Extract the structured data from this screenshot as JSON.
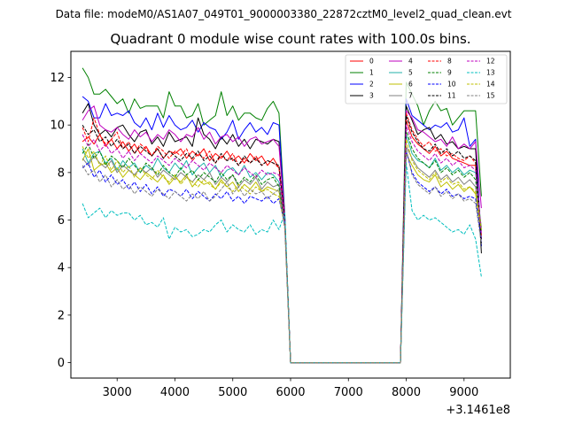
{
  "chart_data": {
    "type": "line",
    "suptitle": "Data file: modeM0/AS1A07_049T01_9000003380_22872cztM0_level2_quad_clean.evt",
    "title": "Quadrant 0 module wise count rates with 100.0s bins.",
    "xlabel": "",
    "ylabel": "",
    "x_offset_label": "+3.1461e8",
    "xlim": [
      2200,
      9800
    ],
    "ylim": [
      -0.65,
      13.1
    ],
    "xticks": [
      3000,
      4000,
      5000,
      6000,
      7000,
      8000,
      9000
    ],
    "yticks": [
      0,
      2,
      4,
      6,
      8,
      10,
      12
    ],
    "xtick_labels": [
      "3000",
      "4000",
      "5000",
      "6000",
      "7000",
      "8000",
      "9000"
    ],
    "ytick_labels": [
      "0",
      "2",
      "4",
      "6",
      "8",
      "10",
      "12"
    ],
    "legend_loc": "upper right",
    "legend_columns": 4,
    "x": [
      2400,
      2500,
      2600,
      2700,
      2800,
      2900,
      3000,
      3100,
      3200,
      3300,
      3400,
      3500,
      3600,
      3700,
      3800,
      3900,
      4000,
      4100,
      4200,
      4300,
      4400,
      4500,
      4600,
      4700,
      4800,
      4900,
      5000,
      5100,
      5200,
      5300,
      5400,
      5500,
      5600,
      5700,
      5800,
      5900,
      6000,
      6100,
      6200,
      6300,
      6400,
      6500,
      6600,
      6700,
      6800,
      6900,
      7000,
      7100,
      7200,
      7300,
      7400,
      7500,
      7600,
      7700,
      7800,
      7900,
      8000,
      8100,
      8200,
      8300,
      8400,
      8500,
      8600,
      8700,
      8800,
      8900,
      9000,
      9100,
      9200,
      9300,
      9400,
      9500,
      9600
    ],
    "series": [
      {
        "name": "0",
        "color": "#ff0000",
        "style": "solid",
        "plateau1": [
          9.3,
          9.5,
          9.2,
          9.6,
          9.1,
          9.4,
          9.0,
          9.3,
          8.9,
          9.2,
          8.8,
          9.1,
          8.7,
          9.0,
          8.6,
          8.9,
          8.8,
          9.0,
          8.6,
          8.9,
          8.7,
          9.0,
          8.5,
          8.8,
          8.6,
          8.9,
          8.5,
          8.7,
          8.4,
          8.8,
          8.5,
          8.7,
          8.3,
          8.6,
          8.2
        ],
        "drop": 6.1,
        "plateau2": [
          10.2,
          9.5,
          9.2,
          9.0,
          8.8,
          9.1,
          8.7,
          8.9,
          8.6,
          8.5,
          8.4,
          8.3,
          8.3
        ],
        "end": 5.2
      },
      {
        "name": "1",
        "color": "#008000",
        "style": "solid",
        "plateau1": [
          12.4,
          12.0,
          11.3,
          11.3,
          11.5,
          11.2,
          10.9,
          11.1,
          10.5,
          11.1,
          10.7,
          10.8,
          10.8,
          10.8,
          10.3,
          11.4,
          10.8,
          10.8,
          10.3,
          10.4,
          10.9,
          10.0,
          10.2,
          10.4,
          11.4,
          10.4,
          10.8,
          10.2,
          10.5,
          10.5,
          10.3,
          10.2,
          10.7,
          11.0,
          10.5
        ],
        "drop": 6.2,
        "plateau2": [
          11.8,
          11.3,
          10.8,
          10.0,
          10.6,
          11.0,
          10.6,
          10.7,
          10.0,
          10.3,
          10.6,
          10.6,
          10.6
        ],
        "end": 7.0
      },
      {
        "name": "2",
        "color": "#0000ff",
        "style": "solid",
        "plateau1": [
          11.2,
          11.0,
          10.3,
          10.3,
          10.9,
          10.4,
          10.5,
          10.4,
          10.6,
          10.1,
          9.9,
          10.3,
          9.8,
          10.5,
          9.9,
          10.4,
          10.0,
          9.8,
          9.9,
          10.2,
          9.7,
          10.1,
          9.9,
          9.8,
          9.4,
          9.7,
          10.2,
          9.4,
          9.8,
          10.1,
          9.7,
          9.9,
          9.6,
          10.1,
          10.0
        ],
        "drop": 6.1,
        "plateau2": [
          11.1,
          10.4,
          10.2,
          10.0,
          9.8,
          10.0,
          9.9,
          10.1,
          9.7,
          9.8,
          10.3,
          9.1,
          9.4
        ],
        "end": 4.9
      },
      {
        "name": "3",
        "color": "#000000",
        "style": "solid",
        "plateau1": [
          10.5,
          10.9,
          10.0,
          9.6,
          9.8,
          9.5,
          9.9,
          10.0,
          9.6,
          9.3,
          9.7,
          9.8,
          9.2,
          9.5,
          9.1,
          9.7,
          9.3,
          9.4,
          9.5,
          9.1,
          10.3,
          9.6,
          9.4,
          9.0,
          9.5,
          9.2,
          9.6,
          9.1,
          9.4,
          9.0,
          9.4,
          9.3,
          9.2,
          9.4,
          9.3
        ],
        "drop": 6.0,
        "plateau2": [
          10.8,
          10.2,
          9.6,
          9.8,
          9.9,
          9.4,
          9.6,
          9.2,
          9.3,
          9.0,
          9.1,
          9.0,
          9.0
        ],
        "end": 4.6
      },
      {
        "name": "4",
        "color": "#bf00bf",
        "style": "solid",
        "plateau1": [
          10.2,
          10.6,
          10.8,
          10.0,
          9.8,
          9.7,
          9.9,
          9.6,
          9.4,
          9.8,
          9.5,
          9.7,
          9.3,
          9.6,
          9.4,
          9.8,
          9.6,
          9.3,
          9.6,
          9.5,
          9.9,
          9.4,
          9.7,
          9.2,
          9.5,
          9.6,
          9.3,
          9.5,
          9.1,
          9.4,
          9.5,
          9.2,
          9.3,
          9.4,
          9.1
        ],
        "drop": 6.1,
        "plateau2": [
          10.6,
          10.3,
          9.8,
          9.7,
          9.5,
          9.3,
          9.4,
          9.1,
          9.5,
          9.0,
          9.2,
          9.0,
          9.3
        ],
        "end": 6.5
      },
      {
        "name": "5",
        "color": "#20b2aa",
        "style": "solid",
        "plateau1": [
          9.0,
          8.4,
          8.8,
          8.9,
          8.4,
          8.6,
          8.1,
          8.5,
          8.2,
          8.4,
          8.0,
          8.3,
          8.1,
          8.6,
          8.2,
          8.0,
          8.4,
          8.1,
          8.5,
          7.9,
          8.2,
          8.4,
          8.0,
          8.3,
          7.8,
          8.1,
          8.2,
          7.9,
          8.3,
          7.8,
          8.0,
          7.7,
          8.0,
          7.9,
          7.6
        ],
        "drop": 5.9,
        "plateau2": [
          9.6,
          8.8,
          8.5,
          8.4,
          8.2,
          8.6,
          8.1,
          8.3,
          8.0,
          8.2,
          7.9,
          8.1,
          8.0
        ],
        "end": 5.6
      },
      {
        "name": "6",
        "color": "#bfbf00",
        "style": "solid",
        "plateau1": [
          8.5,
          9.0,
          8.1,
          8.3,
          8.4,
          8.0,
          8.2,
          7.8,
          8.1,
          7.9,
          7.7,
          8.0,
          7.8,
          7.6,
          7.9,
          7.5,
          7.8,
          7.6,
          7.9,
          7.4,
          7.7,
          7.5,
          7.6,
          7.3,
          7.7,
          7.4,
          7.6,
          7.2,
          7.5,
          7.3,
          7.6,
          7.2,
          7.4,
          7.3,
          7.2
        ],
        "drop": 5.8,
        "plateau2": [
          8.8,
          8.3,
          7.9,
          7.7,
          7.6,
          7.9,
          7.4,
          7.6,
          7.3,
          7.5,
          7.2,
          7.4,
          7.1
        ],
        "end": 5.4
      },
      {
        "name": "7",
        "color": "#808080",
        "style": "solid",
        "plateau1": [
          8.6,
          8.3,
          8.7,
          8.4,
          8.2,
          8.5,
          8.0,
          8.3,
          8.1,
          7.9,
          8.2,
          8.0,
          8.2,
          7.8,
          8.1,
          7.9,
          7.7,
          8.0,
          7.8,
          7.6,
          7.9,
          7.7,
          8.0,
          7.5,
          7.8,
          7.6,
          7.9,
          7.4,
          7.7,
          7.5,
          7.8,
          7.3,
          7.6,
          7.4,
          7.5
        ],
        "drop": 5.9,
        "plateau2": [
          9.1,
          8.6,
          8.2,
          8.0,
          7.8,
          8.1,
          7.7,
          7.9,
          7.6,
          7.8,
          7.5,
          7.7,
          7.4
        ],
        "end": 5.7
      },
      {
        "name": "8",
        "color": "#ff0000",
        "style": "dashed",
        "plateau1": [
          9.9,
          9.3,
          10.3,
          9.6,
          9.2,
          9.4,
          9.7,
          9.0,
          9.3,
          8.8,
          9.2,
          9.0,
          8.7,
          9.1,
          8.9,
          8.6,
          8.9,
          8.7,
          9.0,
          8.5,
          8.8,
          8.6,
          8.9,
          8.4,
          8.7,
          8.5,
          8.8,
          8.3,
          8.6,
          8.4,
          8.7,
          8.3,
          8.5,
          8.4,
          8.2
        ],
        "drop": 6.0,
        "plateau2": [
          10.5,
          9.8,
          9.4,
          9.1,
          9.3,
          8.9,
          9.0,
          8.7,
          8.8,
          8.6,
          8.5,
          8.7,
          8.4
        ],
        "end": 5.3
      },
      {
        "name": "9",
        "color": "#008000",
        "style": "dashed",
        "plateau1": [
          8.8,
          9.2,
          8.6,
          8.9,
          8.3,
          8.7,
          8.5,
          8.2,
          8.6,
          8.3,
          8.0,
          8.4,
          8.2,
          7.9,
          8.3,
          8.0,
          7.8,
          8.2,
          7.9,
          8.1,
          7.7,
          8.0,
          7.8,
          7.6,
          8.0,
          7.7,
          7.9,
          7.5,
          7.8,
          7.6,
          7.9,
          7.5,
          7.7,
          7.8,
          7.4
        ],
        "drop": 5.8,
        "plateau2": [
          9.8,
          9.0,
          8.6,
          8.4,
          8.2,
          8.5,
          8.0,
          8.2,
          7.9,
          8.1,
          7.8,
          8.0,
          7.7
        ],
        "end": 5.5
      },
      {
        "name": "10",
        "color": "#0000ff",
        "style": "dashed",
        "plateau1": [
          8.2,
          8.4,
          7.8,
          8.1,
          7.6,
          7.9,
          7.5,
          7.7,
          7.3,
          7.6,
          7.2,
          7.5,
          7.1,
          7.4,
          7.0,
          7.3,
          7.2,
          7.0,
          7.3,
          6.9,
          7.2,
          7.0,
          6.8,
          7.1,
          6.9,
          7.2,
          6.8,
          7.0,
          6.7,
          7.0,
          6.9,
          6.8,
          7.0,
          6.7,
          6.9
        ],
        "drop": 5.8,
        "plateau2": [
          8.9,
          8.0,
          7.6,
          7.4,
          7.2,
          7.4,
          7.1,
          7.3,
          7.0,
          7.1,
          6.9,
          7.0,
          6.9
        ],
        "end": 5.2
      },
      {
        "name": "11",
        "color": "#000000",
        "style": "dashed",
        "plateau1": [
          10.0,
          9.6,
          9.8,
          9.3,
          9.5,
          9.1,
          9.4,
          9.0,
          9.2,
          8.8,
          9.1,
          8.9,
          8.7,
          9.0,
          8.6,
          8.9,
          8.7,
          8.5,
          8.8,
          8.6,
          8.9,
          8.5,
          8.7,
          8.4,
          8.8,
          8.5,
          8.6,
          8.3,
          8.7,
          8.4,
          8.6,
          8.3,
          8.5,
          8.4,
          8.3
        ],
        "drop": 6.0,
        "plateau2": [
          10.4,
          9.7,
          9.3,
          9.0,
          8.9,
          9.2,
          8.8,
          9.0,
          8.7,
          8.9,
          8.6,
          8.7,
          8.5
        ],
        "end": 5.0
      },
      {
        "name": "12",
        "color": "#bf00bf",
        "style": "dashed",
        "plateau1": [
          9.6,
          9.1,
          9.4,
          8.9,
          9.2,
          8.8,
          9.0,
          8.6,
          8.9,
          8.5,
          8.8,
          8.6,
          8.4,
          8.7,
          8.5,
          8.3,
          8.6,
          8.4,
          8.2,
          8.5,
          8.3,
          8.1,
          8.4,
          8.2,
          8.0,
          8.3,
          8.1,
          7.9,
          8.2,
          8.0,
          7.8,
          8.1,
          7.9,
          8.0,
          7.9
        ],
        "drop": 5.9,
        "plateau2": [
          10.0,
          9.3,
          8.9,
          8.7,
          8.5,
          8.8,
          8.4,
          8.6,
          8.3,
          8.5,
          8.2,
          8.3,
          8.1
        ],
        "end": 5.4
      },
      {
        "name": "13",
        "color": "#00bfbf",
        "style": "dashed",
        "plateau1": [
          6.7,
          6.1,
          6.3,
          6.5,
          6.1,
          6.4,
          6.2,
          6.3,
          6.3,
          6.0,
          6.2,
          5.8,
          5.9,
          5.7,
          6.1,
          5.2,
          5.7,
          5.5,
          5.6,
          5.3,
          5.4,
          5.6,
          5.5,
          5.8,
          6.0,
          5.5,
          5.8,
          5.6,
          5.5,
          5.8,
          5.4,
          5.6,
          5.5,
          6.0,
          5.6
        ],
        "drop": 6.3,
        "plateau2": [
          8.4,
          6.4,
          6.0,
          6.2,
          6.0,
          6.1,
          5.9,
          5.7,
          5.5,
          5.6,
          5.4,
          5.8,
          5.2
        ],
        "end": 3.6
      },
      {
        "name": "14",
        "color": "#bfbf00",
        "style": "dashed",
        "plateau1": [
          9.1,
          8.6,
          8.9,
          8.3,
          8.7,
          8.1,
          8.5,
          8.0,
          8.3,
          7.8,
          8.2,
          7.9,
          7.7,
          8.1,
          7.8,
          7.6,
          7.9,
          7.5,
          7.8,
          7.6,
          7.4,
          7.7,
          7.5,
          7.3,
          7.6,
          7.4,
          7.2,
          7.5,
          7.3,
          7.1,
          7.4,
          7.2,
          7.3,
          7.1,
          7.0
        ],
        "drop": 5.7,
        "plateau2": [
          9.4,
          8.5,
          8.1,
          7.9,
          7.7,
          8.0,
          7.6,
          7.8,
          7.5,
          7.6,
          7.3,
          7.4,
          7.2
        ],
        "end": 5.6
      },
      {
        "name": "15",
        "color": "#808080",
        "style": "dashed",
        "plateau1": [
          8.3,
          7.9,
          8.1,
          7.6,
          7.9,
          7.4,
          7.7,
          7.3,
          7.5,
          7.1,
          7.4,
          7.2,
          7.0,
          7.3,
          7.1,
          6.9,
          7.2,
          7.0,
          6.8,
          7.1,
          6.9,
          7.2,
          6.8,
          7.0,
          7.3,
          7.6,
          7.1,
          7.4,
          7.0,
          7.3,
          7.1,
          7.2,
          6.9,
          7.1,
          7.3
        ],
        "drop": 5.6,
        "plateau2": [
          9.0,
          7.9,
          7.5,
          7.3,
          7.1,
          7.4,
          7.0,
          7.2,
          6.9,
          7.1,
          6.8,
          6.9,
          6.7
        ],
        "end": 5.0
      }
    ]
  }
}
